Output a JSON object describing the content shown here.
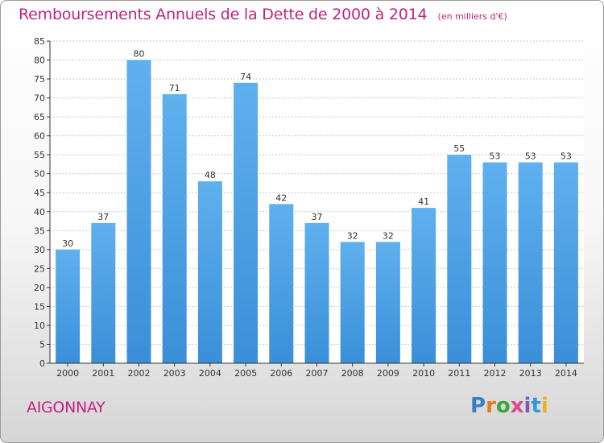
{
  "title": "Remboursements Annuels de la Dette de 2000 à 2014",
  "unit_note": "(en milliers d'€)",
  "commune": "AIGONNAY",
  "logo_text": "Proxiti",
  "colors": {
    "bar": "#3a8fd8",
    "bar_light": "#5fb0ee",
    "title": "#c0247d",
    "axis": "#333333",
    "grid": "#c8c8c8"
  },
  "chart_data": {
    "type": "bar",
    "categories": [
      "2000",
      "2001",
      "2002",
      "2003",
      "2004",
      "2005",
      "2006",
      "2007",
      "2008",
      "2009",
      "2010",
      "2011",
      "2012",
      "2013",
      "2014"
    ],
    "values": [
      30,
      37,
      80,
      71,
      48,
      74,
      42,
      37,
      32,
      32,
      41,
      55,
      53,
      53,
      53
    ],
    "ylim": [
      0,
      85
    ],
    "yticks": [
      0,
      5,
      10,
      15,
      20,
      25,
      30,
      35,
      40,
      45,
      50,
      55,
      60,
      65,
      70,
      75,
      80,
      85
    ],
    "grid": true,
    "title": "Remboursements Annuels de la Dette de 2000 à 2014",
    "xlabel": "",
    "ylabel": ""
  }
}
